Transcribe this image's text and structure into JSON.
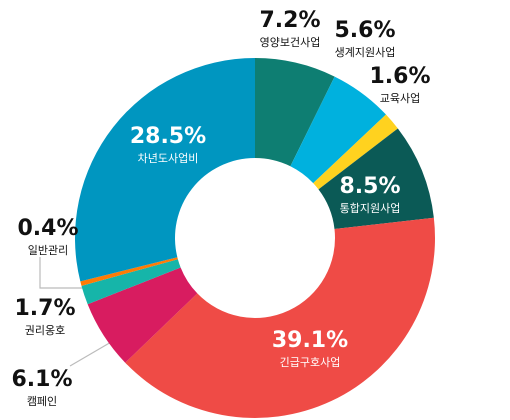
{
  "chart_data": {
    "type": "donut",
    "categories": [
      "영양보건사업",
      "생계지원사업",
      "교육사업",
      "통합지원사업",
      "긴급구호사업",
      "캠페인",
      "권리옹호",
      "일반관리",
      "차년도사업비"
    ],
    "values": [
      7.2,
      5.6,
      1.6,
      8.5,
      39.1,
      6.1,
      1.7,
      0.4,
      28.5
    ],
    "value_labels": [
      "7.2%",
      "5.6%",
      "1.6%",
      "8.5%",
      "39.1%",
      "6.1%",
      "1.7%",
      "0.4%",
      "28.5%"
    ],
    "colors": [
      "#0e7e72",
      "#00b1de",
      "#ffd21f",
      "#0b5a56",
      "#ef4b46",
      "#d81c60",
      "#16b5a9",
      "#ff7b05",
      "#0096c0"
    ]
  }
}
